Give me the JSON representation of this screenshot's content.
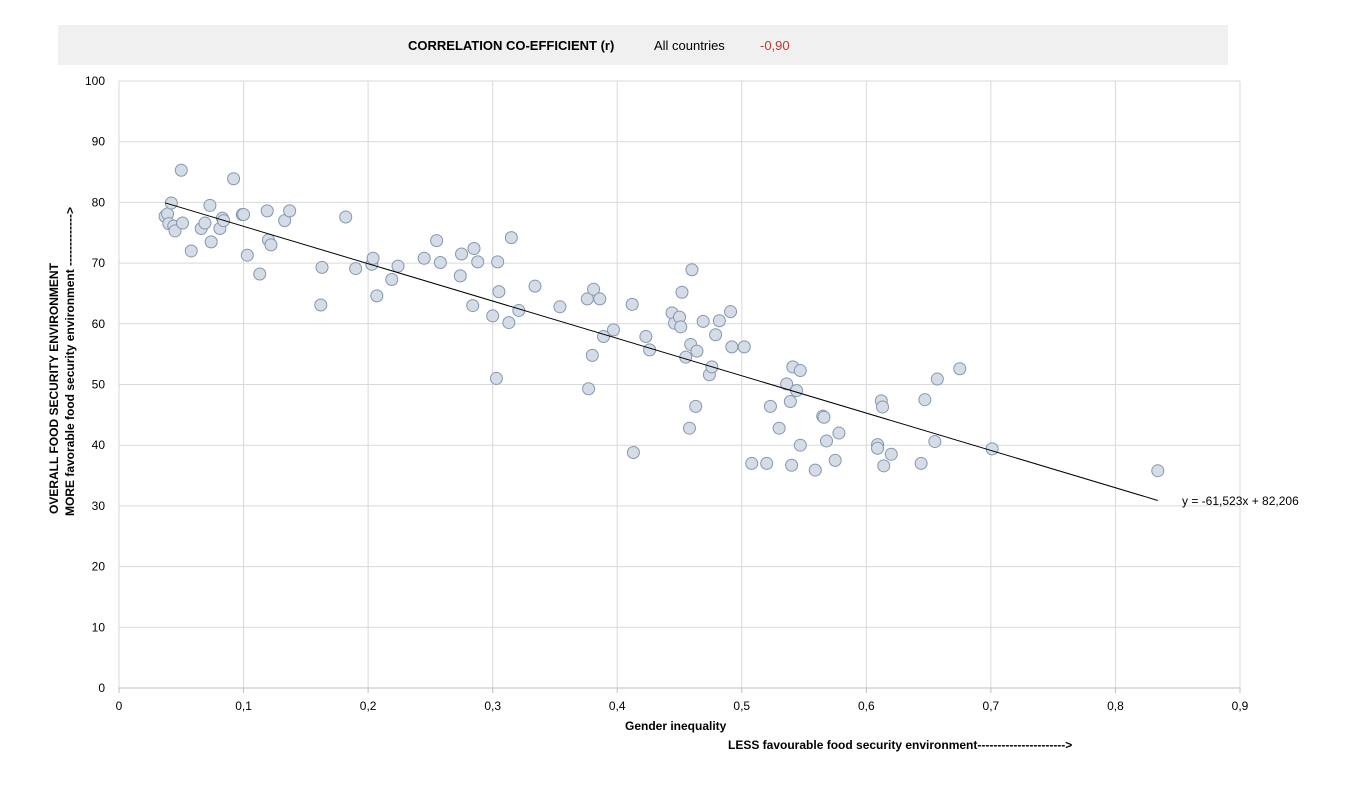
{
  "header": {
    "title": "CORRELATION CO-EFFICIENT (r)",
    "group": "All countries",
    "value": "-0,90",
    "value_color": "#c0392b"
  },
  "chart_data": {
    "type": "scatter",
    "xlabel": "Gender inequality",
    "xlabel_note": "LESS favourable food security environment---------------------->",
    "ylabel_line1": "OVERALL FOOD SECURITY ENVIRONMENT",
    "ylabel_line2": "MORE favorable food security environment ------------->",
    "xlim": [
      0,
      0.9
    ],
    "ylim": [
      0,
      100
    ],
    "x_ticks": [
      0,
      0.1,
      0.2,
      0.3,
      0.4,
      0.5,
      0.6,
      0.7,
      0.8,
      0.9
    ],
    "x_tick_labels": [
      "0",
      "0,1",
      "0,2",
      "0,3",
      "0,4",
      "0,5",
      "0,6",
      "0,7",
      "0,8",
      "0,9"
    ],
    "y_ticks": [
      0,
      10,
      20,
      30,
      40,
      50,
      60,
      70,
      80,
      90,
      100
    ],
    "y_tick_labels": [
      "0",
      "10",
      "20",
      "30",
      "40",
      "50",
      "60",
      "70",
      "80",
      "90",
      "100"
    ],
    "grid": true,
    "marker_fill": "#d6dce5",
    "marker_stroke": "#8497b0",
    "trendline": {
      "slope": -61.523,
      "intercept": 82.206,
      "x_range": [
        0.037,
        0.834
      ],
      "label": "y = -61,523x + 82,206"
    },
    "points": [
      [
        0.037,
        77.7
      ],
      [
        0.039,
        78.1
      ],
      [
        0.04,
        76.5
      ],
      [
        0.042,
        79.9
      ],
      [
        0.044,
        76.1
      ],
      [
        0.045,
        75.3
      ],
      [
        0.05,
        85.3
      ],
      [
        0.051,
        76.6
      ],
      [
        0.058,
        72.0
      ],
      [
        0.066,
        75.7
      ],
      [
        0.069,
        76.6
      ],
      [
        0.073,
        79.5
      ],
      [
        0.074,
        73.5
      ],
      [
        0.081,
        75.7
      ],
      [
        0.083,
        77.4
      ],
      [
        0.084,
        77.0
      ],
      [
        0.092,
        83.9
      ],
      [
        0.099,
        78.0
      ],
      [
        0.1,
        78.0
      ],
      [
        0.103,
        71.3
      ],
      [
        0.113,
        68.2
      ],
      [
        0.119,
        78.6
      ],
      [
        0.12,
        73.8
      ],
      [
        0.122,
        73.0
      ],
      [
        0.133,
        77.0
      ],
      [
        0.137,
        78.6
      ],
      [
        0.162,
        63.1
      ],
      [
        0.163,
        69.3
      ],
      [
        0.182,
        77.6
      ],
      [
        0.19,
        69.1
      ],
      [
        0.203,
        69.8
      ],
      [
        0.204,
        70.8
      ],
      [
        0.207,
        64.6
      ],
      [
        0.219,
        67.3
      ],
      [
        0.224,
        69.5
      ],
      [
        0.245,
        70.8
      ],
      [
        0.255,
        73.7
      ],
      [
        0.258,
        70.1
      ],
      [
        0.274,
        67.9
      ],
      [
        0.275,
        71.5
      ],
      [
        0.284,
        63.0
      ],
      [
        0.285,
        72.4
      ],
      [
        0.288,
        70.2
      ],
      [
        0.3,
        61.3
      ],
      [
        0.303,
        51.0
      ],
      [
        0.304,
        70.2
      ],
      [
        0.305,
        65.3
      ],
      [
        0.313,
        60.2
      ],
      [
        0.315,
        74.2
      ],
      [
        0.321,
        62.2
      ],
      [
        0.334,
        66.2
      ],
      [
        0.354,
        62.8
      ],
      [
        0.376,
        64.1
      ],
      [
        0.377,
        49.3
      ],
      [
        0.38,
        54.8
      ],
      [
        0.381,
        65.7
      ],
      [
        0.386,
        64.1
      ],
      [
        0.389,
        57.9
      ],
      [
        0.397,
        59.0
      ],
      [
        0.412,
        63.2
      ],
      [
        0.413,
        38.8
      ],
      [
        0.423,
        57.9
      ],
      [
        0.426,
        55.7
      ],
      [
        0.444,
        61.8
      ],
      [
        0.446,
        60.1
      ],
      [
        0.45,
        61.1
      ],
      [
        0.451,
        59.5
      ],
      [
        0.452,
        65.2
      ],
      [
        0.455,
        54.5
      ],
      [
        0.458,
        42.8
      ],
      [
        0.459,
        56.6
      ],
      [
        0.46,
        68.9
      ],
      [
        0.463,
        46.4
      ],
      [
        0.464,
        55.5
      ],
      [
        0.469,
        60.4
      ],
      [
        0.474,
        51.6
      ],
      [
        0.476,
        52.9
      ],
      [
        0.479,
        58.2
      ],
      [
        0.482,
        60.5
      ],
      [
        0.491,
        62.0
      ],
      [
        0.492,
        56.2
      ],
      [
        0.502,
        56.2
      ],
      [
        0.508,
        37.0
      ],
      [
        0.52,
        37.0
      ],
      [
        0.523,
        46.4
      ],
      [
        0.53,
        42.8
      ],
      [
        0.536,
        50.1
      ],
      [
        0.539,
        47.2
      ],
      [
        0.54,
        36.7
      ],
      [
        0.541,
        52.9
      ],
      [
        0.544,
        49.0
      ],
      [
        0.547,
        52.3
      ],
      [
        0.547,
        40.0
      ],
      [
        0.559,
        35.9
      ],
      [
        0.565,
        44.8
      ],
      [
        0.566,
        44.6
      ],
      [
        0.568,
        40.7
      ],
      [
        0.575,
        37.5
      ],
      [
        0.578,
        42.0
      ],
      [
        0.609,
        40.1
      ],
      [
        0.609,
        39.5
      ],
      [
        0.612,
        47.3
      ],
      [
        0.613,
        46.3
      ],
      [
        0.614,
        36.6
      ],
      [
        0.62,
        38.5
      ],
      [
        0.644,
        37.0
      ],
      [
        0.647,
        47.5
      ],
      [
        0.655,
        40.6
      ],
      [
        0.657,
        50.9
      ],
      [
        0.675,
        52.6
      ],
      [
        0.701,
        39.4
      ],
      [
        0.834,
        35.8
      ]
    ]
  }
}
